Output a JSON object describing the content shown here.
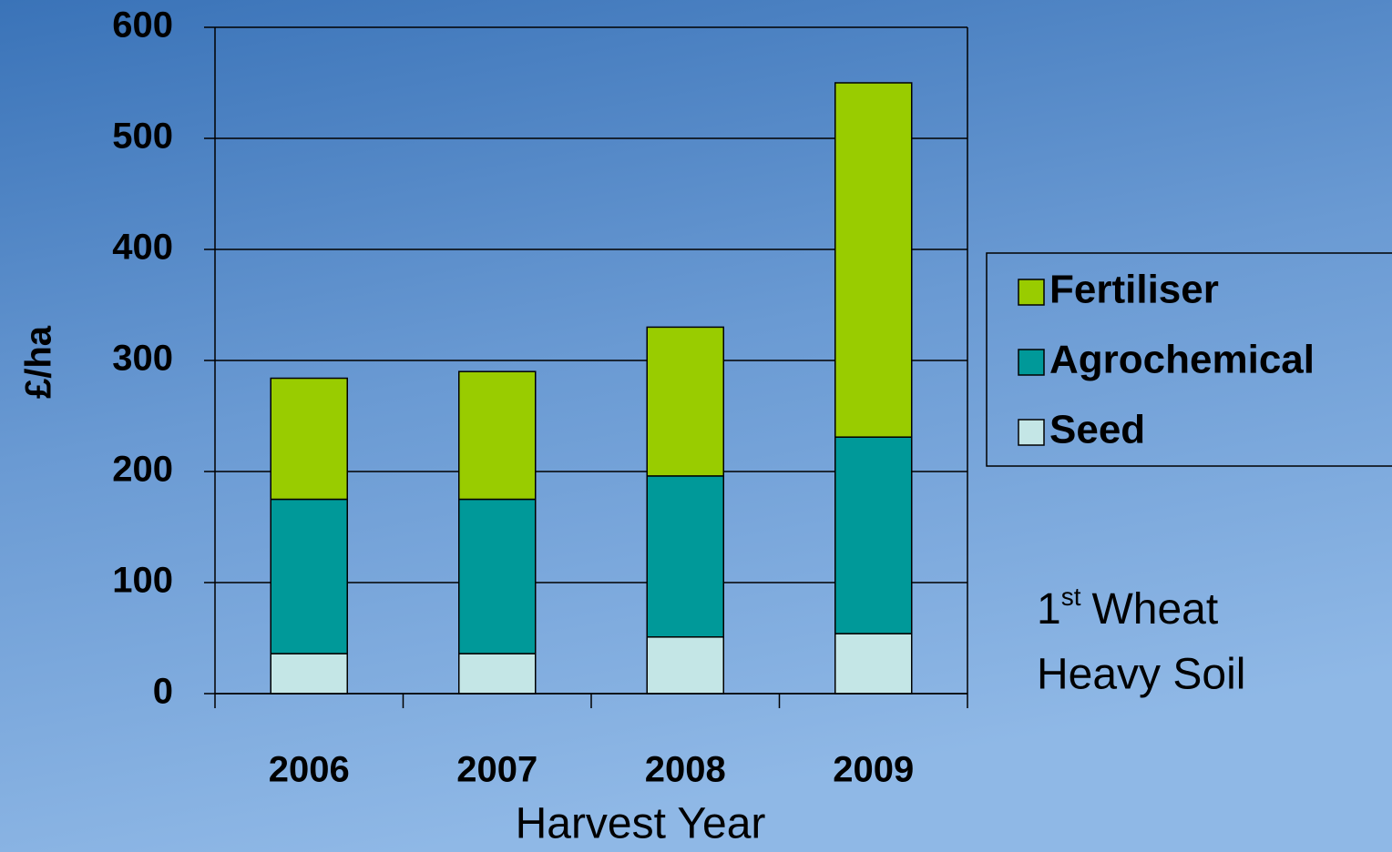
{
  "chart_data": {
    "type": "stacked_bar",
    "x_label": "Harvest Year",
    "y_label": "£/ha",
    "categories": [
      "2006",
      "2007",
      "2008",
      "2009"
    ],
    "series": [
      {
        "name": "Seed",
        "color": "#c4e6e6",
        "values": [
          36,
          36,
          51,
          54
        ]
      },
      {
        "name": "Agrochemical",
        "color": "#009999",
        "values": [
          139,
          139,
          145,
          177
        ]
      },
      {
        "name": "Fertiliser",
        "color": "#99cc00",
        "values": [
          109,
          115,
          134,
          319
        ]
      }
    ],
    "ylim": [
      0,
      600
    ],
    "yticks": [
      0,
      100,
      200,
      300,
      400,
      500,
      600
    ],
    "grid": true,
    "legend": "right",
    "annotation": {
      "number": "1",
      "suffix": "st",
      "rest": "Wheat",
      "line2": "Heavy Soil"
    }
  }
}
